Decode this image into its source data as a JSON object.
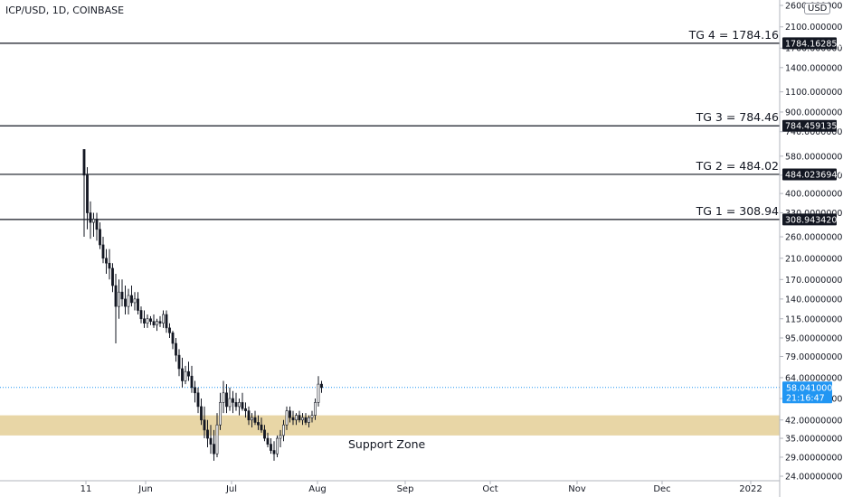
{
  "header": {
    "symbol_title": "ICP/USD, 1D, COINBASE",
    "currency": "USD"
  },
  "colors": {
    "bull": "#131722",
    "bear": "#131722",
    "grid_axis": "#b2b5be",
    "support_zone": "#e8d6a6",
    "last_price_bg": "#2196f3",
    "line": "#131722"
  },
  "chart_data": {
    "type": "candlestick",
    "scale": "log",
    "y_ticks": [
      2600,
      2100,
      1700,
      1400,
      1100,
      900,
      740,
      580,
      480,
      400,
      330,
      260,
      210,
      170,
      140,
      115,
      95,
      79,
      64,
      52,
      42,
      35,
      29,
      24
    ],
    "y_tick_labels": [
      "2600.00000000",
      "2100.00000000",
      "1700.00000000",
      "1400.00000000",
      "1100.00000000",
      "900.00000000",
      "740.00000000",
      "580.00000000",
      "480.00000000",
      "400.00000000",
      "330.00000000",
      "260.00000000",
      "210.00000000",
      "170.00000000",
      "140.00000000",
      "115.00000000",
      "95.00000000",
      "79.00000000",
      "64.00000000",
      "52.00000000",
      "42.00000000",
      "35.00000000",
      "29.00000000",
      "24.00000000"
    ],
    "x_labels": [
      "11",
      "Jun",
      "Jul",
      "Aug",
      "Sep",
      "Oct",
      "Nov",
      "Dec",
      "2022"
    ],
    "targets": [
      {
        "label": "TG 4 = 1784.16",
        "price": 1784.16285258,
        "tag": "1784.16285258"
      },
      {
        "label": "TG 3 = 784.46",
        "price": 784.45913536,
        "tag": "784.45913536"
      },
      {
        "label": "TG 2 = 484.02",
        "price": 484.02369474,
        "tag": "484.02369474"
      },
      {
        "label": "TG 1 = 308.94",
        "price": 308.9434204,
        "tag": "308.94342040"
      }
    ],
    "support_zone": {
      "label": "Support Zone",
      "low": 36,
      "high": 44
    },
    "last_price": {
      "value": 58.041,
      "label": "58.04100000",
      "countdown": "21:16:47"
    },
    "candles": [
      {
        "o": 620,
        "h": 620,
        "l": 260,
        "c": 480
      },
      {
        "o": 480,
        "h": 520,
        "l": 280,
        "c": 330
      },
      {
        "o": 330,
        "h": 370,
        "l": 255,
        "c": 300
      },
      {
        "o": 300,
        "h": 330,
        "l": 260,
        "c": 310
      },
      {
        "o": 310,
        "h": 330,
        "l": 250,
        "c": 280
      },
      {
        "o": 280,
        "h": 300,
        "l": 230,
        "c": 240
      },
      {
        "o": 240,
        "h": 260,
        "l": 200,
        "c": 210
      },
      {
        "o": 210,
        "h": 230,
        "l": 180,
        "c": 200
      },
      {
        "o": 200,
        "h": 230,
        "l": 170,
        "c": 190
      },
      {
        "o": 190,
        "h": 200,
        "l": 150,
        "c": 160
      },
      {
        "o": 160,
        "h": 180,
        "l": 90,
        "c": 130
      },
      {
        "o": 130,
        "h": 170,
        "l": 115,
        "c": 150
      },
      {
        "o": 150,
        "h": 170,
        "l": 130,
        "c": 140
      },
      {
        "o": 140,
        "h": 160,
        "l": 120,
        "c": 130
      },
      {
        "o": 130,
        "h": 155,
        "l": 120,
        "c": 145
      },
      {
        "o": 145,
        "h": 160,
        "l": 130,
        "c": 135
      },
      {
        "o": 135,
        "h": 150,
        "l": 125,
        "c": 140
      },
      {
        "o": 140,
        "h": 150,
        "l": 120,
        "c": 125
      },
      {
        "o": 125,
        "h": 130,
        "l": 110,
        "c": 115
      },
      {
        "o": 115,
        "h": 125,
        "l": 105,
        "c": 110
      },
      {
        "o": 110,
        "h": 120,
        "l": 105,
        "c": 115
      },
      {
        "o": 115,
        "h": 118,
        "l": 108,
        "c": 112
      },
      {
        "o": 112,
        "h": 120,
        "l": 105,
        "c": 108
      },
      {
        "o": 108,
        "h": 115,
        "l": 102,
        "c": 112
      },
      {
        "o": 112,
        "h": 118,
        "l": 106,
        "c": 110
      },
      {
        "o": 110,
        "h": 125,
        "l": 105,
        "c": 120
      },
      {
        "o": 120,
        "h": 125,
        "l": 100,
        "c": 105
      },
      {
        "o": 105,
        "h": 110,
        "l": 95,
        "c": 100
      },
      {
        "o": 100,
        "h": 102,
        "l": 85,
        "c": 90
      },
      {
        "o": 90,
        "h": 95,
        "l": 75,
        "c": 80
      },
      {
        "o": 80,
        "h": 85,
        "l": 65,
        "c": 70
      },
      {
        "o": 70,
        "h": 78,
        "l": 58,
        "c": 62
      },
      {
        "o": 62,
        "h": 72,
        "l": 60,
        "c": 68
      },
      {
        "o": 68,
        "h": 75,
        "l": 62,
        "c": 65
      },
      {
        "o": 65,
        "h": 72,
        "l": 55,
        "c": 58
      },
      {
        "o": 58,
        "h": 62,
        "l": 50,
        "c": 55
      },
      {
        "o": 55,
        "h": 58,
        "l": 45,
        "c": 48
      },
      {
        "o": 48,
        "h": 52,
        "l": 40,
        "c": 42
      },
      {
        "o": 42,
        "h": 48,
        "l": 35,
        "c": 38
      },
      {
        "o": 38,
        "h": 42,
        "l": 32,
        "c": 35
      },
      {
        "o": 35,
        "h": 40,
        "l": 30,
        "c": 33
      },
      {
        "o": 33,
        "h": 38,
        "l": 28,
        "c": 30
      },
      {
        "o": 30,
        "h": 45,
        "l": 29,
        "c": 40
      },
      {
        "o": 40,
        "h": 55,
        "l": 38,
        "c": 50
      },
      {
        "o": 50,
        "h": 62,
        "l": 45,
        "c": 55
      },
      {
        "o": 55,
        "h": 60,
        "l": 45,
        "c": 48
      },
      {
        "o": 48,
        "h": 58,
        "l": 46,
        "c": 52
      },
      {
        "o": 52,
        "h": 56,
        "l": 45,
        "c": 50
      },
      {
        "o": 50,
        "h": 55,
        "l": 46,
        "c": 48
      },
      {
        "o": 48,
        "h": 52,
        "l": 44,
        "c": 50
      },
      {
        "o": 50,
        "h": 55,
        "l": 46,
        "c": 47
      },
      {
        "o": 47,
        "h": 50,
        "l": 43,
        "c": 46
      },
      {
        "o": 46,
        "h": 48,
        "l": 40,
        "c": 42
      },
      {
        "o": 42,
        "h": 45,
        "l": 39,
        "c": 43
      },
      {
        "o": 43,
        "h": 46,
        "l": 40,
        "c": 41
      },
      {
        "o": 41,
        "h": 44,
        "l": 38,
        "c": 40
      },
      {
        "o": 40,
        "h": 43,
        "l": 37,
        "c": 38
      },
      {
        "o": 38,
        "h": 40,
        "l": 34,
        "c": 35
      },
      {
        "o": 35,
        "h": 37,
        "l": 32,
        "c": 33
      },
      {
        "o": 33,
        "h": 35,
        "l": 30,
        "c": 31
      },
      {
        "o": 31,
        "h": 34,
        "l": 28,
        "c": 30
      },
      {
        "o": 30,
        "h": 36,
        "l": 29,
        "c": 35
      },
      {
        "o": 35,
        "h": 38,
        "l": 32,
        "c": 36
      },
      {
        "o": 36,
        "h": 42,
        "l": 34,
        "c": 40
      },
      {
        "o": 40,
        "h": 48,
        "l": 38,
        "c": 46
      },
      {
        "o": 46,
        "h": 48,
        "l": 41,
        "c": 43
      },
      {
        "o": 43,
        "h": 46,
        "l": 40,
        "c": 42
      },
      {
        "o": 42,
        "h": 45,
        "l": 40,
        "c": 44
      },
      {
        "o": 44,
        "h": 46,
        "l": 41,
        "c": 42
      },
      {
        "o": 42,
        "h": 45,
        "l": 40,
        "c": 43
      },
      {
        "o": 43,
        "h": 45,
        "l": 40,
        "c": 41
      },
      {
        "o": 41,
        "h": 44,
        "l": 39,
        "c": 43
      },
      {
        "o": 43,
        "h": 46,
        "l": 41,
        "c": 44
      },
      {
        "o": 44,
        "h": 52,
        "l": 42,
        "c": 50
      },
      {
        "o": 50,
        "h": 65,
        "l": 48,
        "c": 60
      },
      {
        "o": 60,
        "h": 62,
        "l": 55,
        "c": 58
      }
    ]
  }
}
